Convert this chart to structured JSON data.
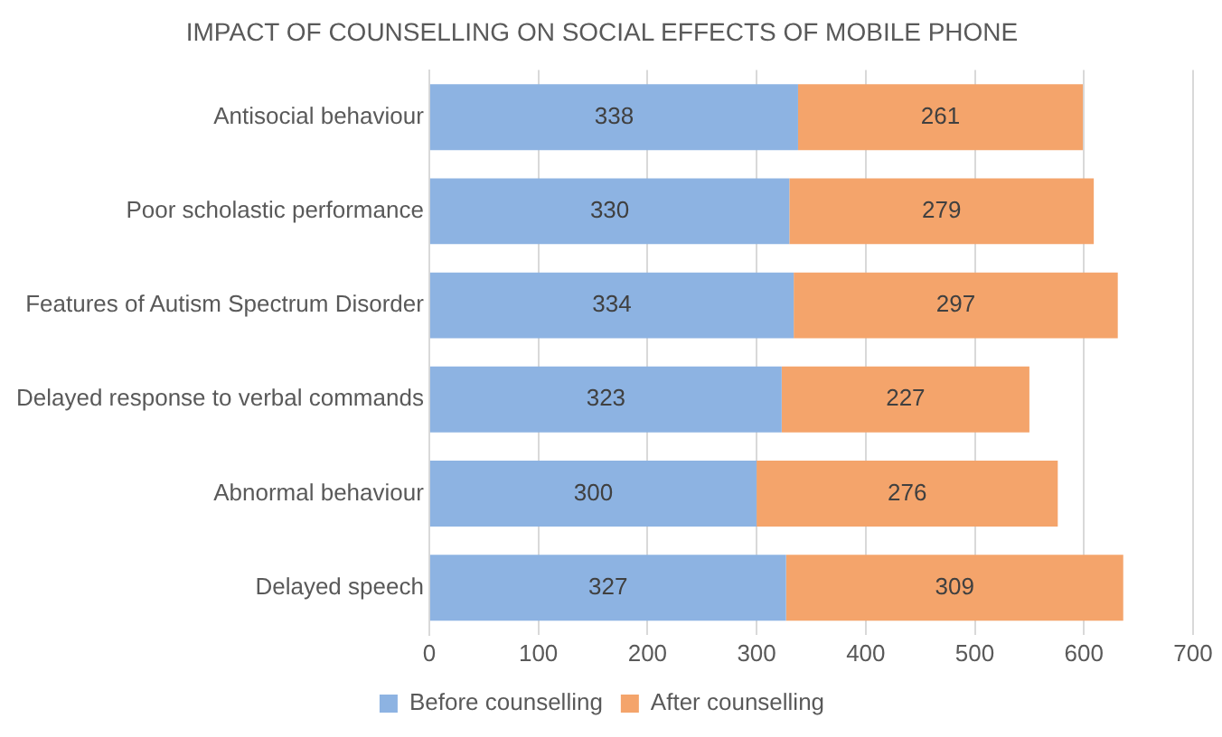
{
  "chart_data": {
    "type": "bar",
    "orientation": "horizontal",
    "stacked": true,
    "title": "IMPACT OF COUNSELLING ON SOCIAL EFFECTS OF MOBILE PHONE",
    "categories": [
      "Antisocial behaviour",
      "Poor scholastic performance",
      "Features of Autism Spectrum Disorder",
      "Delayed response to verbal commands",
      "Abnormal behaviour",
      "Delayed speech"
    ],
    "series": [
      {
        "name": "Before counselling",
        "color": "#8db3e2",
        "values": [
          338,
          330,
          334,
          323,
          300,
          327
        ]
      },
      {
        "name": "After counselling",
        "color": "#f4a46b",
        "values": [
          261,
          279,
          297,
          227,
          276,
          309
        ]
      }
    ],
    "xlim": [
      0,
      700
    ],
    "xticks": [
      0,
      100,
      200,
      300,
      400,
      500,
      600,
      700
    ],
    "grid": "x",
    "legend": "bottom",
    "data_labels": true
  }
}
